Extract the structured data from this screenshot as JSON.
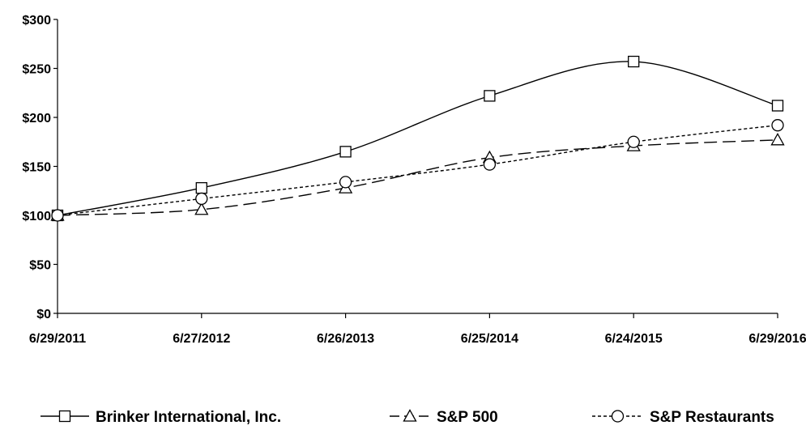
{
  "chart_data": {
    "type": "line",
    "title": "",
    "xlabel": "",
    "ylabel": "",
    "categories": [
      "6/29/2011",
      "6/27/2012",
      "6/26/2013",
      "6/25/2014",
      "6/24/2015",
      "6/29/2016"
    ],
    "y_tick_labels": [
      "$0",
      "$50",
      "$100",
      "$150",
      "$200",
      "$250",
      "$300"
    ],
    "y_tick_values": [
      0,
      50,
      100,
      150,
      200,
      250,
      300
    ],
    "ylim": [
      0,
      300
    ],
    "grid": false,
    "legend_position": "bottom",
    "series": [
      {
        "name": "Brinker International, Inc.",
        "values": [
          100,
          128,
          165,
          222,
          257,
          212
        ],
        "marker": "square",
        "line_style": "solid",
        "color": "#000000"
      },
      {
        "name": "S&P 500",
        "values": [
          100,
          106,
          128,
          159,
          171,
          177
        ],
        "marker": "triangle",
        "line_style": "long-dash",
        "color": "#000000"
      },
      {
        "name": "S&P Restaurants",
        "values": [
          100,
          117,
          134,
          152,
          175,
          192
        ],
        "marker": "circle",
        "line_style": "short-dash",
        "color": "#000000"
      }
    ]
  }
}
